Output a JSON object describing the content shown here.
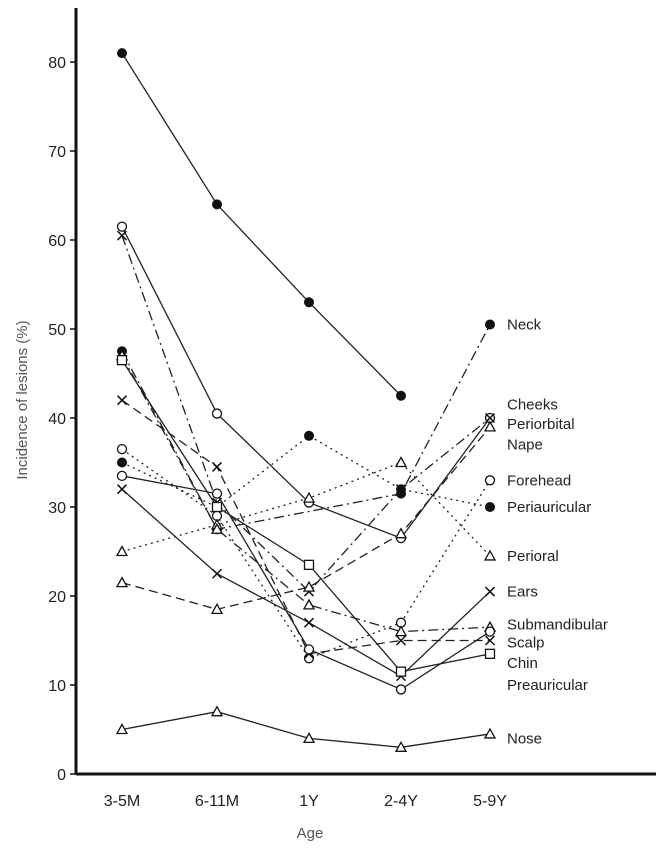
{
  "chart_data": {
    "type": "line",
    "xlabel": "Age",
    "ylabel": "Incidence of lesions (%)",
    "categories": [
      "3-5M",
      "6-11M",
      "1Y",
      "2-4Y",
      "5-9Y"
    ],
    "ylim": [
      0,
      85
    ],
    "yticks": [
      0,
      10,
      20,
      30,
      40,
      50,
      60,
      70,
      80
    ],
    "grid": false,
    "series": [
      {
        "name": "Neck",
        "marker": "filled-circle",
        "dash": "solid",
        "values": [
          81,
          64,
          53,
          42.5,
          null
        ]
      },
      {
        "name": "Neck",
        "marker": "filled-circle",
        "dash": "dashdot",
        "values": [
          47.5,
          27.5,
          null,
          31.5,
          50.5
        ]
      },
      {
        "name": "Cheeks",
        "marker": "open-circle",
        "dash": "solid",
        "values": [
          61.5,
          40.5,
          30.5,
          26.5,
          40
        ]
      },
      {
        "name": "Periorbital",
        "marker": "cross",
        "dash": "dashdot",
        "values": [
          60.5,
          30.5,
          20.5,
          32,
          40
        ]
      },
      {
        "name": "Nape",
        "marker": "open-triangle",
        "dash": "dashed",
        "values": [
          21.5,
          18.5,
          21,
          27,
          39
        ]
      },
      {
        "name": "Forehead",
        "marker": "open-circle",
        "dash": "dotted",
        "values": [
          36.5,
          29,
          13,
          17,
          33
        ]
      },
      {
        "name": "Periauricular",
        "marker": "filled-circle",
        "dash": "dotted",
        "values": [
          35,
          30,
          38,
          32,
          30
        ]
      },
      {
        "name": "Perioral",
        "marker": "open-triangle",
        "dash": "dotted",
        "values": [
          25,
          28,
          31,
          35,
          24.5
        ]
      },
      {
        "name": "Ears",
        "marker": "cross",
        "dash": "solid",
        "values": [
          32,
          22.5,
          17,
          11,
          20.5
        ]
      },
      {
        "name": "Submandibular",
        "marker": "open-triangle",
        "dash": "dashdot",
        "values": [
          47,
          27.5,
          19,
          16,
          16.5
        ]
      },
      {
        "name": "Scalp",
        "marker": "cross",
        "dash": "dashed",
        "values": [
          42,
          34.5,
          13.5,
          15,
          15
        ]
      },
      {
        "name": "Chin",
        "marker": "open-square",
        "dash": "solid",
        "values": [
          46.5,
          30,
          23.5,
          11.5,
          13.5
        ]
      },
      {
        "name": "Preauricular",
        "marker": "open-circle",
        "dash": "solid",
        "values": [
          33.5,
          31.5,
          14,
          9.5,
          16
        ]
      },
      {
        "name": "Nose",
        "marker": "open-triangle",
        "dash": "solid",
        "values": [
          5,
          7,
          4,
          3,
          4.5
        ]
      }
    ],
    "labels": [
      {
        "key": "neck",
        "text": "Neck",
        "y": 50.5
      },
      {
        "key": "cheeks",
        "text": "Cheeks",
        "y": 41.5
      },
      {
        "key": "periorbital",
        "text": "Periorbital",
        "y": 39.3
      },
      {
        "key": "nape",
        "text": "Nape",
        "y": 37
      },
      {
        "key": "forehead",
        "text": "Forehead",
        "y": 33
      },
      {
        "key": "periauricular",
        "text": "Periauricular",
        "y": 30
      },
      {
        "key": "perioral",
        "text": "Perioral",
        "y": 24.5
      },
      {
        "key": "ears",
        "text": "Ears",
        "y": 20.5
      },
      {
        "key": "submandibular",
        "text": "Submandibular",
        "y": 16.8
      },
      {
        "key": "scalp",
        "text": "Scalp",
        "y": 14.8
      },
      {
        "key": "chin",
        "text": "Chin",
        "y": 12.5
      },
      {
        "key": "preauricular",
        "text": "Preauricular",
        "y": 10
      },
      {
        "key": "nose",
        "text": "Nose",
        "y": 4
      }
    ]
  }
}
